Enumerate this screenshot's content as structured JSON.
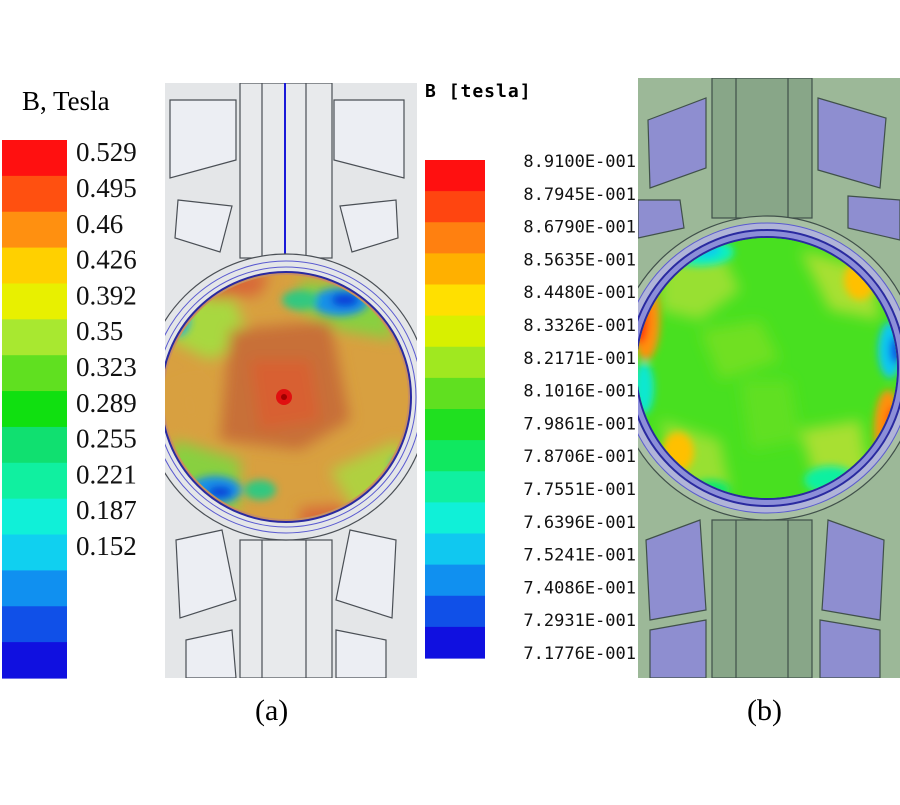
{
  "figure": {
    "left_panel": {
      "caption": "(a)",
      "colorbar": {
        "title": "B, Tesla",
        "colors": [
          "#ff1010",
          "#ff5010",
          "#ff9010",
          "#ffd000",
          "#e8f000",
          "#a8e830",
          "#60e020",
          "#10e010",
          "#10e070",
          "#10f0a0",
          "#10f0d8",
          "#10d0f0",
          "#1090f0",
          "#1050e8",
          "#1010e0"
        ],
        "labels": [
          "0.529",
          "0.495",
          "0.46",
          "0.426",
          "0.392",
          "0.35",
          "0.323",
          "0.289",
          "0.255",
          "0.221",
          "0.187",
          "0.152"
        ]
      }
    },
    "right_panel": {
      "caption": "(b)",
      "colorbar": {
        "title": "B [tesla]",
        "colors": [
          "#ff1010",
          "#ff4510",
          "#ff8010",
          "#ffb000",
          "#ffe000",
          "#d8f000",
          "#a0e820",
          "#60e020",
          "#20e020",
          "#10e860",
          "#10f0a0",
          "#10f0d8",
          "#10c8f0",
          "#1090f0",
          "#1050e8",
          "#1010e0"
        ],
        "labels": [
          "8.9100E-001",
          "8.7945E-001",
          "8.6790E-001",
          "8.5635E-001",
          "8.4480E-001",
          "8.3326E-001",
          "8.2171E-001",
          "8.1016E-001",
          "7.9861E-001",
          "7.8706E-001",
          "7.7551E-001",
          "7.6396E-001",
          "7.5241E-001",
          "7.4086E-001",
          "7.2931E-001",
          "7.1776E-001"
        ]
      }
    },
    "palette": {
      "stator_a": "#e4e6e8",
      "slot_a": "#e9ebf1",
      "outline_a": "#4a4f55",
      "stator_b": "#9cb898",
      "slot_b": "#8e8ed0",
      "outline_b": "#40504a",
      "ring": "#2a2aa0",
      "shaft_line": "#1a1ad8"
    }
  }
}
